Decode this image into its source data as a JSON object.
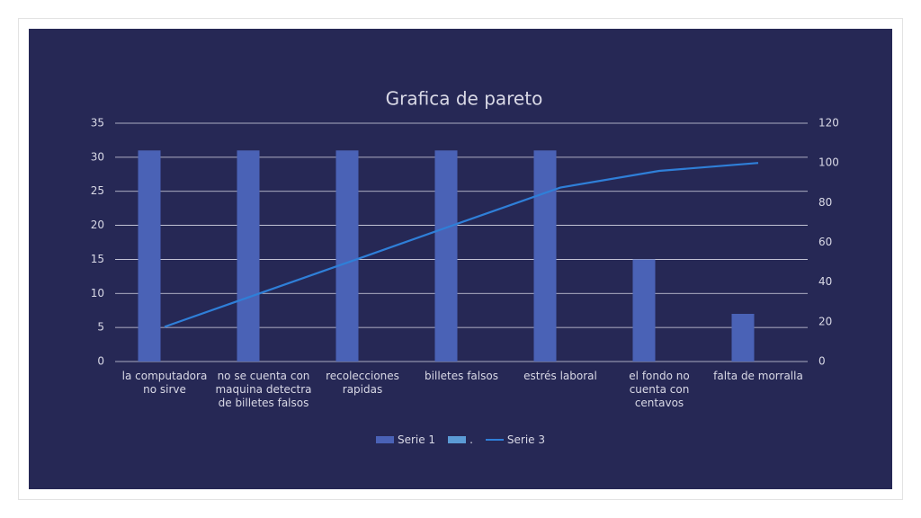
{
  "chart_data": {
    "type": "bar",
    "title": "Grafica de pareto",
    "categories": [
      "la computadora no sirve",
      "no se cuenta con maquina detectra de billetes falsos",
      "recolecciones rapidas",
      "billetes falsos",
      "estrés laboral",
      "el fondo no cuenta con centavos",
      "falta de morralla"
    ],
    "series": [
      {
        "name": "Serie 1",
        "type": "bar",
        "color": "#4a62b6",
        "values": [
          31,
          31,
          31,
          31,
          31,
          15,
          7
        ]
      },
      {
        "name": ".",
        "type": "bar",
        "color": "#5b9bd5",
        "values": [
          null,
          null,
          null,
          null,
          null,
          null,
          null
        ]
      },
      {
        "name": "Serie 3",
        "type": "line",
        "axis": "y2",
        "color": "#2f7fd8",
        "values": [
          17.5,
          35.0,
          52.5,
          70.1,
          87.6,
          96.0,
          100
        ]
      }
    ],
    "ylim": [
      0,
      35
    ],
    "yticks": [
      0,
      5,
      10,
      15,
      20,
      25,
      30,
      35
    ],
    "y2lim": [
      0,
      120
    ],
    "y2ticks": [
      0,
      20,
      40,
      60,
      80,
      100,
      120
    ],
    "grid": true,
    "legend": "bottom"
  }
}
